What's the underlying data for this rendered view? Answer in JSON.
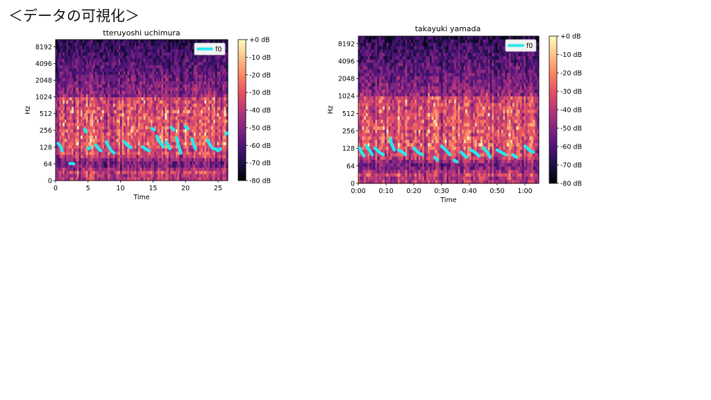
{
  "slide": {
    "title": "＜データの可視化＞"
  },
  "colors": {
    "f0": "#26e8f0",
    "colormap": [
      "#000004",
      "#1d1147",
      "#51127c",
      "#822681",
      "#b73779",
      "#e75263",
      "#fc8961",
      "#fec488",
      "#fcfdbf"
    ]
  },
  "chart_data": [
    {
      "type": "heatmap",
      "title": "tteruyoshi uchimura",
      "xlabel": "Time",
      "ylabel": "Hz",
      "x_ticks": [
        "0",
        "5",
        "10",
        "15",
        "20",
        "25"
      ],
      "x_tick_values": [
        0,
        5,
        10,
        15,
        20,
        25
      ],
      "xlim": [
        0,
        26.5
      ],
      "y_ticks": [
        "0",
        "64",
        "128",
        "256",
        "512",
        "1024",
        "2048",
        "4096",
        "8192"
      ],
      "y_scale": "symlog (base 2)",
      "legend": {
        "label": "f0",
        "position": "top-right"
      },
      "colorbar": {
        "ticks": [
          "+0 dB",
          "-10 dB",
          "-20 dB",
          "-30 dB",
          "-40 dB",
          "-50 dB",
          "-60 dB",
          "-70 dB",
          "-80 dB"
        ],
        "range": [
          -80,
          0
        ]
      },
      "f0_segments": [
        [
          [
            0.4,
            150
          ],
          [
            0.8,
            130
          ],
          [
            1.0,
            110
          ]
        ],
        [
          [
            2.2,
            65
          ],
          [
            2.8,
            64
          ]
        ],
        [
          [
            4.5,
            270
          ],
          [
            4.7,
            240
          ]
        ],
        [
          [
            5.0,
            120
          ],
          [
            5.4,
            125
          ]
        ],
        [
          [
            6.2,
            140
          ],
          [
            6.6,
            120
          ],
          [
            7.0,
            110
          ]
        ],
        [
          [
            7.8,
            160
          ],
          [
            8.2,
            130
          ],
          [
            8.6,
            110
          ],
          [
            9.0,
            100
          ]
        ],
        [
          [
            10.6,
            160
          ],
          [
            11.0,
            140
          ],
          [
            11.6,
            125
          ]
        ],
        [
          [
            13.4,
            130
          ],
          [
            13.8,
            120
          ],
          [
            14.4,
            110
          ]
        ],
        [
          [
            14.8,
            280
          ],
          [
            15.2,
            260
          ]
        ],
        [
          [
            15.6,
            200
          ],
          [
            16.0,
            160
          ],
          [
            16.6,
            130
          ]
        ],
        [
          [
            17.0,
            160
          ],
          [
            17.3,
            140
          ],
          [
            17.6,
            120
          ]
        ],
        [
          [
            17.8,
            290
          ],
          [
            18.2,
            260
          ]
        ],
        [
          [
            18.6,
            190
          ],
          [
            18.9,
            140
          ],
          [
            19.3,
            100
          ]
        ],
        [
          [
            20.0,
            300
          ],
          [
            20.4,
            270
          ]
        ],
        [
          [
            21.0,
            180
          ],
          [
            21.5,
            120
          ]
        ],
        [
          [
            23.4,
            170
          ],
          [
            23.8,
            140
          ],
          [
            24.2,
            120
          ]
        ],
        [
          [
            24.6,
            120
          ],
          [
            25.0,
            110
          ],
          [
            25.4,
            120
          ]
        ],
        [
          [
            26.2,
            220
          ],
          [
            26.4,
            230
          ]
        ]
      ]
    },
    {
      "type": "heatmap",
      "title": "takayuki yamada",
      "xlabel": "Time",
      "ylabel": "Hz",
      "x_ticks": [
        "0:00",
        "0:10",
        "0:20",
        "0:30",
        "0:40",
        "0:50",
        "1:00"
      ],
      "x_tick_values": [
        0,
        10,
        20,
        30,
        40,
        50,
        60
      ],
      "xlim": [
        0,
        65
      ],
      "y_ticks": [
        "0",
        "64",
        "128",
        "256",
        "512",
        "1024",
        "2048",
        "4096",
        "8192"
      ],
      "y_scale": "symlog (base 2)",
      "legend": {
        "label": "f0",
        "position": "top-right"
      },
      "colorbar": {
        "ticks": [
          "+0 dB",
          "-10 dB",
          "-20 dB",
          "-30 dB",
          "-40 dB",
          "-50 dB",
          "-60 dB",
          "-70 dB",
          "-80 dB"
        ],
        "range": [
          -80,
          0
        ]
      },
      "f0_segments": [
        [
          [
            0.5,
            130
          ],
          [
            1.2,
            110
          ],
          [
            2.0,
            95
          ]
        ],
        [
          [
            3.0,
            140
          ],
          [
            4.0,
            120
          ],
          [
            5.0,
            100
          ]
        ],
        [
          [
            6.0,
            130
          ],
          [
            7.5,
            110
          ],
          [
            9.0,
            100
          ]
        ],
        [
          [
            11.5,
            190
          ],
          [
            12.0,
            150
          ],
          [
            13.0,
            120
          ]
        ],
        [
          [
            14.5,
            120
          ],
          [
            16.0,
            110
          ],
          [
            17.0,
            100
          ]
        ],
        [
          [
            20.0,
            130
          ],
          [
            21.5,
            110
          ],
          [
            23.0,
            100
          ]
        ],
        [
          [
            27.5,
            90
          ],
          [
            28.5,
            80
          ]
        ],
        [
          [
            30.0,
            140
          ],
          [
            31.5,
            120
          ],
          [
            33.0,
            100
          ]
        ],
        [
          [
            34.5,
            80
          ],
          [
            35.5,
            75
          ]
        ],
        [
          [
            37.0,
            110
          ],
          [
            38.0,
            100
          ],
          [
            39.0,
            90
          ]
        ],
        [
          [
            40.5,
            120
          ],
          [
            42.0,
            110
          ],
          [
            43.5,
            95
          ]
        ],
        [
          [
            45.0,
            130
          ],
          [
            46.5,
            110
          ],
          [
            47.5,
            90
          ]
        ],
        [
          [
            50.0,
            120
          ],
          [
            51.5,
            110
          ],
          [
            53.0,
            100
          ]
        ],
        [
          [
            55.5,
            100
          ],
          [
            57.0,
            90
          ]
        ],
        [
          [
            60.0,
            140
          ],
          [
            61.5,
            120
          ],
          [
            63.0,
            110
          ]
        ]
      ]
    }
  ]
}
